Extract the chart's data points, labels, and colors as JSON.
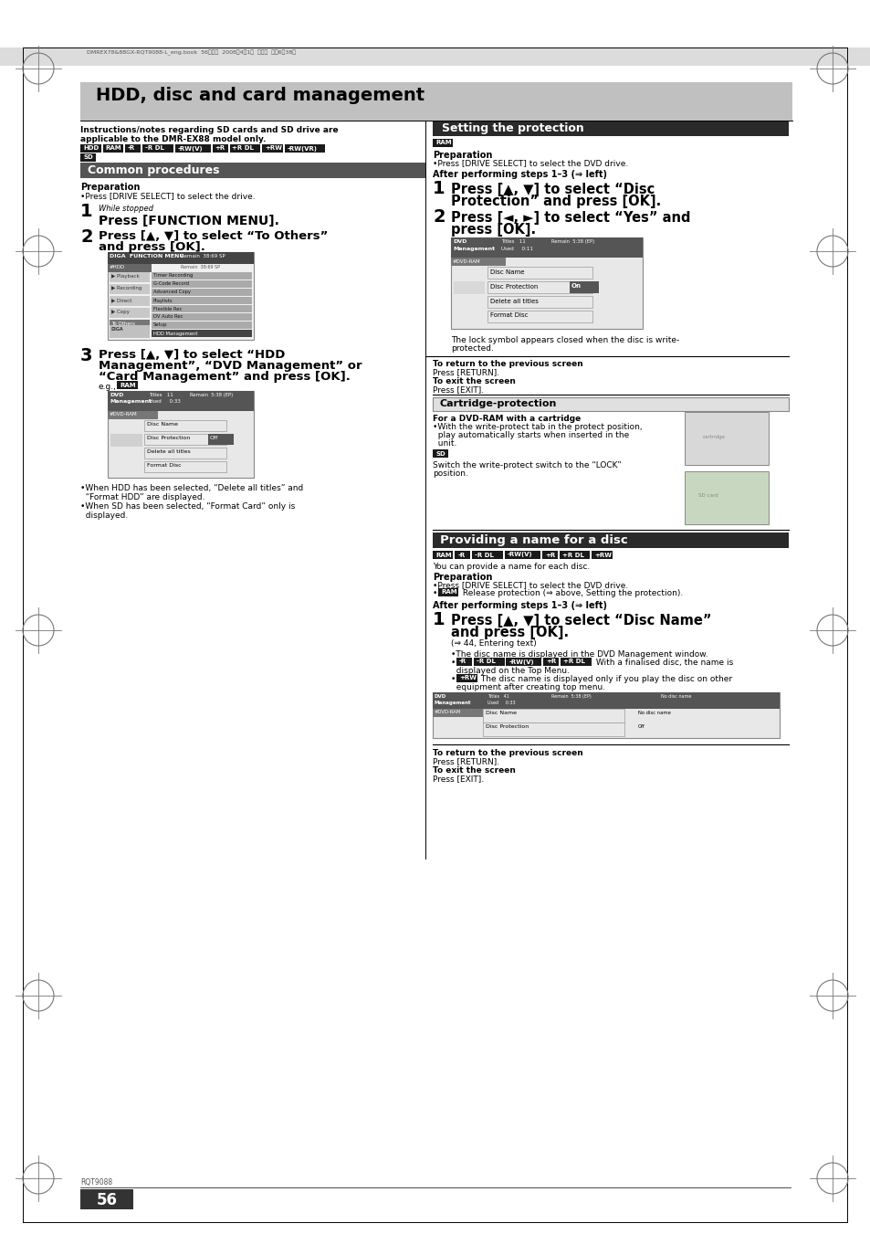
{
  "page_bg": "#ffffff",
  "header_bg": "#c0c0c0",
  "header_text": "HDD, disc and card management",
  "section_left_bg": "#555555",
  "section_left_text": "Common procedures",
  "section_right1_bg": "#2a2a2a",
  "section_right1_text": "Setting the protection",
  "section_right2_bg": "#2a2a2a",
  "section_right2_text": "Providing a name for a disc",
  "cartridge_section_bg": "#e0e0e0",
  "cartridge_section_text": "Cartridge-protection",
  "page_number": "56",
  "rqt_code": "RQT9088",
  "top_strip_text": "DMREX78&88GX-RQT9088-L_eng.book  56ページ  2008年4月1日  火曜日  午後6時38分"
}
